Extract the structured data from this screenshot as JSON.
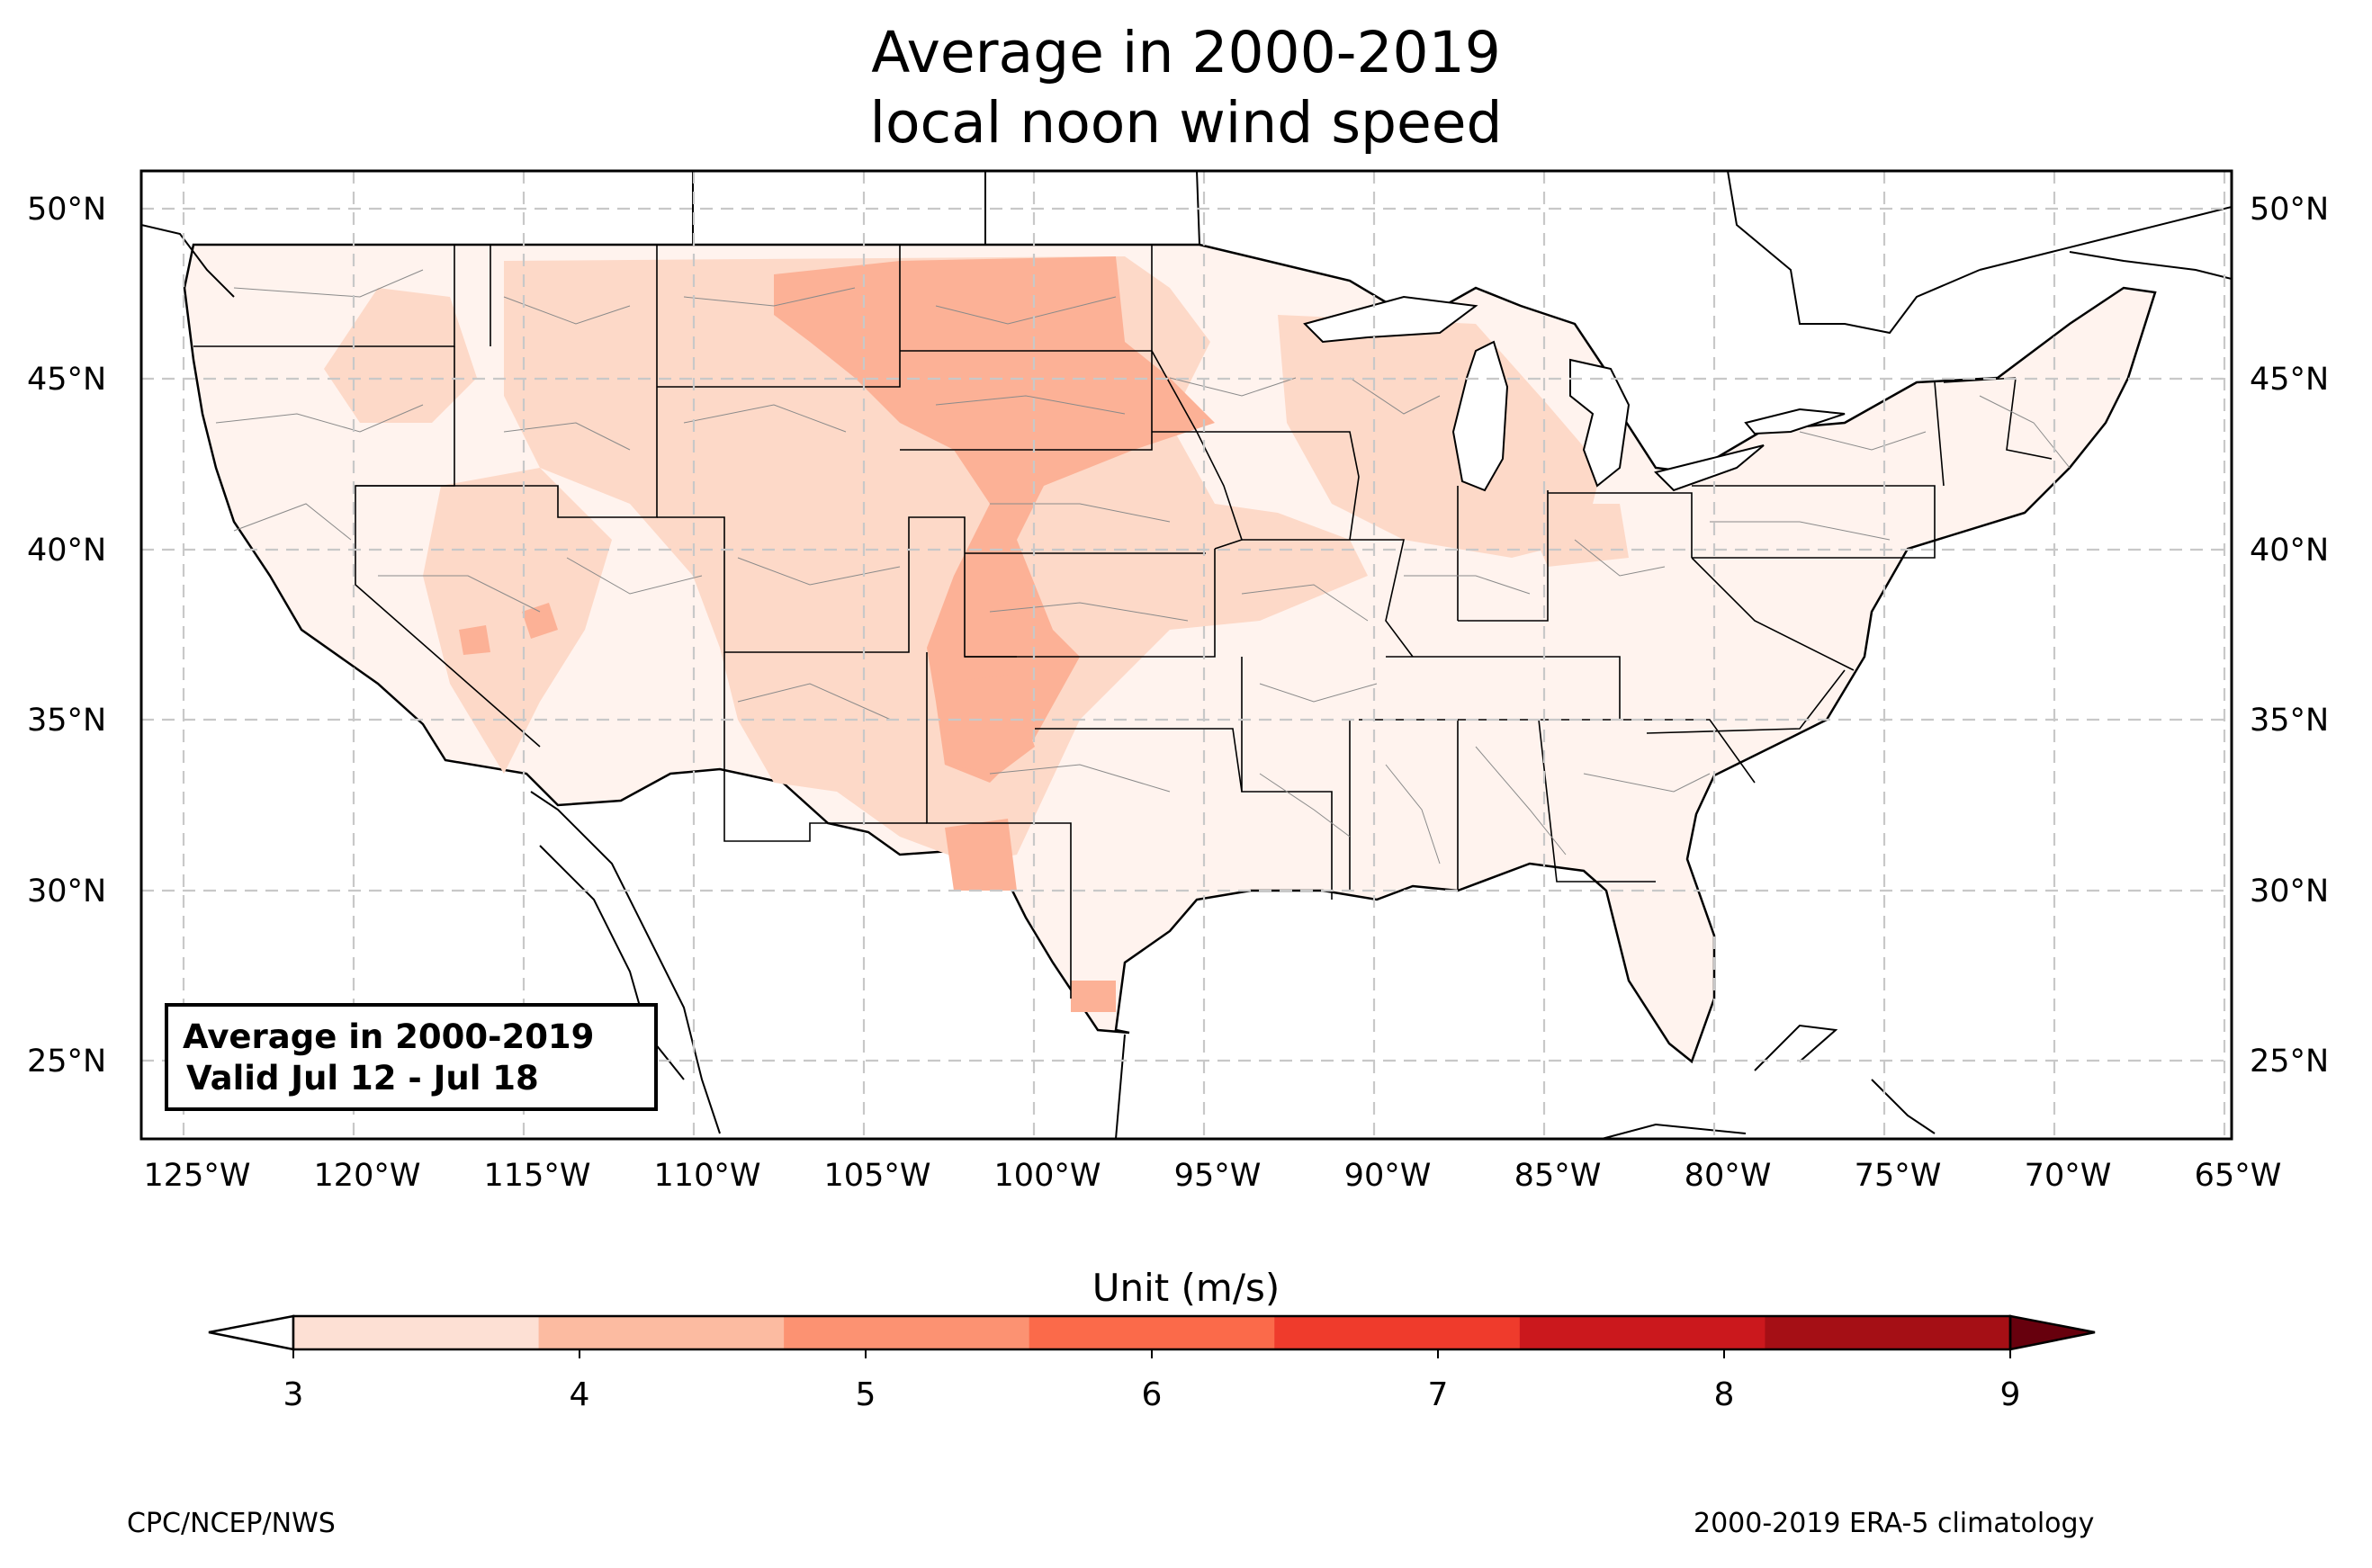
{
  "title": {
    "line1": "Average in 2000-2019",
    "line2": "local noon wind speed"
  },
  "map": {
    "lon_range": [
      -126.3,
      -64.8
    ],
    "lat_range": [
      22.8,
      51.2
    ],
    "lat_ticks": [
      "50°N",
      "45°N",
      "40°N",
      "35°N",
      "30°N",
      "25°N"
    ],
    "lon_ticks": [
      "125°W",
      "120°W",
      "115°W",
      "110°W",
      "105°W",
      "100°W",
      "95°W",
      "90°W",
      "85°W",
      "80°W",
      "75°W",
      "70°W",
      "65°W"
    ],
    "gridlines": "dashed",
    "info_box": {
      "line1": "Average in 2000-2019",
      "line2": "Valid Jul 12 - Jul 18"
    }
  },
  "colorbar": {
    "label": "Unit (m/s)",
    "ticks": [
      "3",
      "4",
      "5",
      "6",
      "7",
      "8",
      "9"
    ],
    "colors": [
      "#fde0d4",
      "#fcbba1",
      "#fc9272",
      "#fb6a4a",
      "#ef3b2c",
      "#cb181d",
      "#a50f15"
    ],
    "under_color": "#ffffff",
    "over_color": "#67000d"
  },
  "footer": {
    "left": "CPC/NCEP/NWS",
    "right": "2000-2019 ERA-5 climatology"
  }
}
